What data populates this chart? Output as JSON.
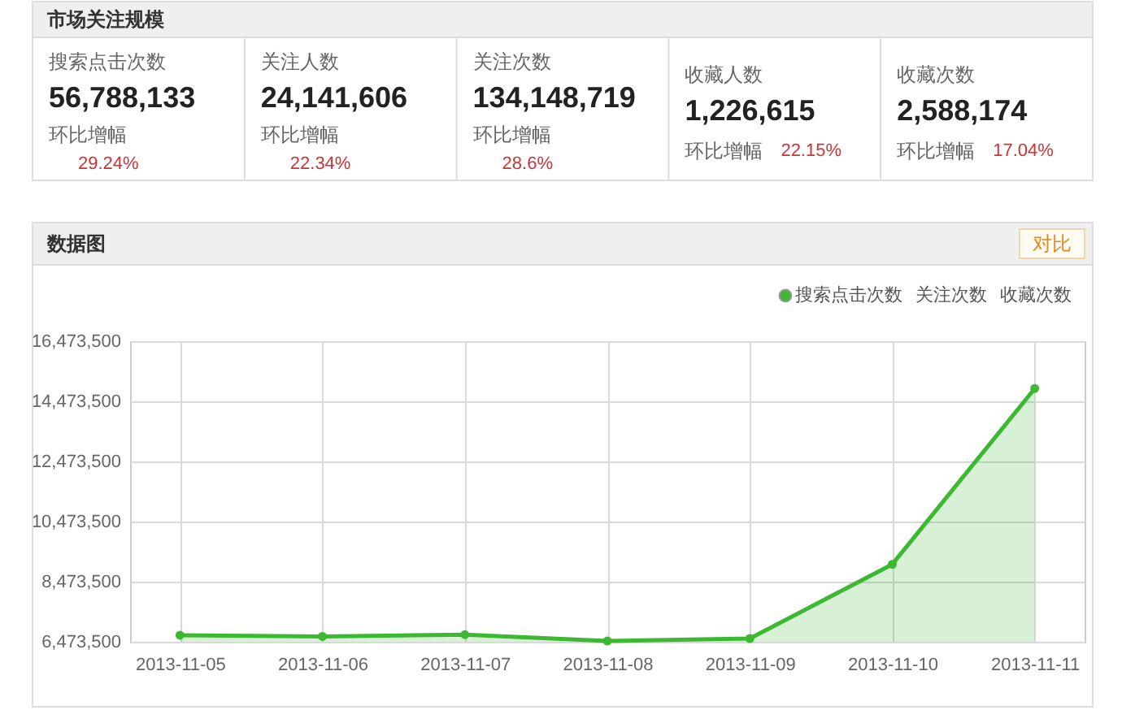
{
  "chart_data": [
    {
      "type": "other",
      "title": "市场关注规模",
      "annotations": [
        "搜索点击次数",
        "56,788,133",
        "环比增幅",
        "29.24%",
        "关注人数",
        "24,141,606",
        "环比增幅",
        "22.34%",
        "关注次数",
        "134,148,719",
        "环比增幅",
        "28.6%",
        "收藏人数",
        "1,226,615",
        "环比增幅",
        "22.15%",
        "收藏次数",
        "2,588,174",
        "环比增幅",
        "17.04%"
      ]
    },
    {
      "type": "area",
      "title": "数据图",
      "categories": [
        "2013-11-05",
        "2013-11-06",
        "2013-11-07",
        "2013-11-08",
        "2013-11-09",
        "2013-11-10",
        "2013-11-11"
      ],
      "series": [
        {
          "name": "搜索点击次数",
          "color": "#3cb832",
          "values": [
            6690000,
            6650000,
            6710000,
            6500000,
            6580000,
            9050000,
            14900000
          ]
        }
      ],
      "ylim": [
        6473500,
        16473500
      ],
      "yticks": [
        {
          "value": 6473500,
          "label": "6,473,500"
        },
        {
          "value": 8473500,
          "label": "8,473,500"
        },
        {
          "value": 10473500,
          "label": "10,473,500"
        },
        {
          "value": 12473500,
          "label": "12,473,500"
        },
        {
          "value": 14473500,
          "label": "14,473,500"
        },
        {
          "value": 16473500,
          "label": "16,473,500"
        }
      ],
      "grid": true,
      "legend": "top right",
      "marker": "circle",
      "annotations": [
        "对比",
        "关注次数",
        "收藏次数"
      ]
    }
  ]
}
